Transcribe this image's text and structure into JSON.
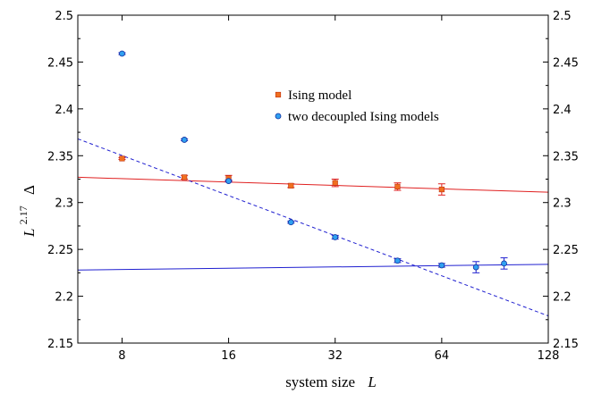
{
  "chart_data": {
    "type": "scatter",
    "xlabel": "system size",
    "xlabel_var": "L",
    "ylabel_base": "L",
    "ylabel_exponent": "2.17",
    "ylabel_symbol": "Δ",
    "x_scale": "log2",
    "xlim": [
      6,
      128
    ],
    "ylim": [
      2.15,
      2.5
    ],
    "x_ticks": [
      8,
      16,
      32,
      64,
      128
    ],
    "x_tick_labels": [
      "8",
      "16",
      "32",
      "64",
      "128"
    ],
    "y_ticks": [
      2.15,
      2.2,
      2.25,
      2.3,
      2.35,
      2.4,
      2.45,
      2.5
    ],
    "y_tick_labels": [
      "2.15",
      "2.2",
      "2.25",
      "2.3",
      "2.35",
      "2.4",
      "2.45",
      "2.5"
    ],
    "right_axis_mirrored": true,
    "legend_position": "upper-center",
    "series": [
      {
        "name": "Ising model",
        "marker": "square",
        "color": "#f07020",
        "fit_color": "#e02020",
        "fit_style": "solid",
        "points": [
          {
            "x": 8,
            "y": 2.347,
            "err": 0.001
          },
          {
            "x": 12,
            "y": 2.327,
            "err": 0.002
          },
          {
            "x": 16,
            "y": 2.326,
            "err": 0.003
          },
          {
            "x": 24,
            "y": 2.318,
            "err": 0.002
          },
          {
            "x": 32,
            "y": 2.321,
            "err": 0.004
          },
          {
            "x": 48,
            "y": 2.317,
            "err": 0.004
          },
          {
            "x": 64,
            "y": 2.314,
            "err": 0.006
          }
        ],
        "fit": [
          [
            6,
            2.327
          ],
          [
            128,
            2.311
          ]
        ]
      },
      {
        "name": "two decoupled Ising models",
        "marker": "circle",
        "color": "#30a0f0",
        "fit_color": "#2020d0",
        "fit_style": "solid",
        "points": [
          {
            "x": 8,
            "y": 2.459,
            "err": 0.001
          },
          {
            "x": 12,
            "y": 2.367,
            "err": 0.001
          },
          {
            "x": 16,
            "y": 2.323,
            "err": 0.001
          },
          {
            "x": 24,
            "y": 2.279,
            "err": 0.001
          },
          {
            "x": 32,
            "y": 2.263,
            "err": 0.002
          },
          {
            "x": 48,
            "y": 2.238,
            "err": 0.002
          },
          {
            "x": 64,
            "y": 2.233,
            "err": 0.002
          },
          {
            "x": 80,
            "y": 2.231,
            "err": 0.006
          },
          {
            "x": 96,
            "y": 2.235,
            "err": 0.006
          }
        ],
        "fit": [
          [
            6,
            2.228
          ],
          [
            128,
            2.234
          ]
        ],
        "fit2_style": "dashed",
        "fit2": [
          [
            6,
            2.368
          ],
          [
            128,
            2.179
          ]
        ]
      }
    ]
  }
}
